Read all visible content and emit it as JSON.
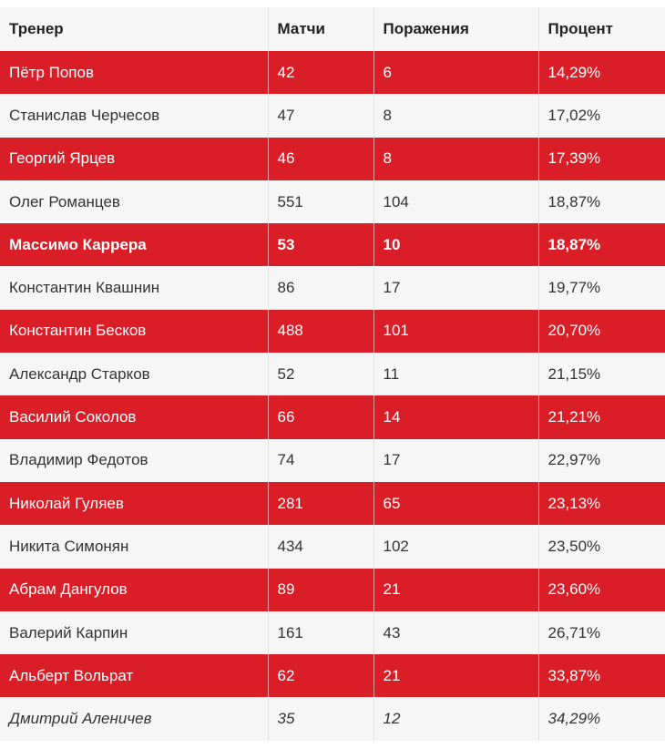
{
  "table": {
    "headers": [
      "Тренер",
      "Матчи",
      "Поражения",
      "Процент"
    ],
    "rows": [
      {
        "coach": "Пётр Попов",
        "matches": "42",
        "losses": "6",
        "percent": "14,29%",
        "style": "red"
      },
      {
        "coach": "Станислав Черчесов",
        "matches": "47",
        "losses": "8",
        "percent": "17,02%",
        "style": "light"
      },
      {
        "coach": "Георгий Ярцев",
        "matches": "46",
        "losses": "8",
        "percent": "17,39%",
        "style": "red"
      },
      {
        "coach": "Олег Романцев",
        "matches": "551",
        "losses": "104",
        "percent": "18,87%",
        "style": "light"
      },
      {
        "coach": "Массимо Каррера",
        "matches": "53",
        "losses": "10",
        "percent": "18,87%",
        "style": "red bold"
      },
      {
        "coach": "Константин Квашнин",
        "matches": "86",
        "losses": "17",
        "percent": "19,77%",
        "style": "light"
      },
      {
        "coach": "Константин Бесков",
        "matches": "488",
        "losses": "101",
        "percent": "20,70%",
        "style": "red"
      },
      {
        "coach": "Александр Старков",
        "matches": "52",
        "losses": "11",
        "percent": "21,15%",
        "style": "light"
      },
      {
        "coach": "Василий Соколов",
        "matches": "66",
        "losses": "14",
        "percent": "21,21%",
        "style": "red"
      },
      {
        "coach": "Владимир Федотов",
        "matches": "74",
        "losses": "17",
        "percent": "22,97%",
        "style": "light"
      },
      {
        "coach": "Николай Гуляев",
        "matches": "281",
        "losses": "65",
        "percent": "23,13%",
        "style": "red"
      },
      {
        "coach": "Никита Симонян",
        "matches": "434",
        "losses": "102",
        "percent": "23,50%",
        "style": "light"
      },
      {
        "coach": "Абрам Дангулов",
        "matches": "89",
        "losses": "21",
        "percent": "23,60%",
        "style": "red"
      },
      {
        "coach": "Валерий Карпин",
        "matches": "161",
        "losses": "43",
        "percent": "26,71%",
        "style": "light"
      },
      {
        "coach": "Альберт Вольрат",
        "matches": "62",
        "losses": "21",
        "percent": "33,87%",
        "style": "red"
      },
      {
        "coach": "Дмитрий Аленичев",
        "matches": "35",
        "losses": "12",
        "percent": "34,29%",
        "style": "light ital"
      }
    ]
  }
}
